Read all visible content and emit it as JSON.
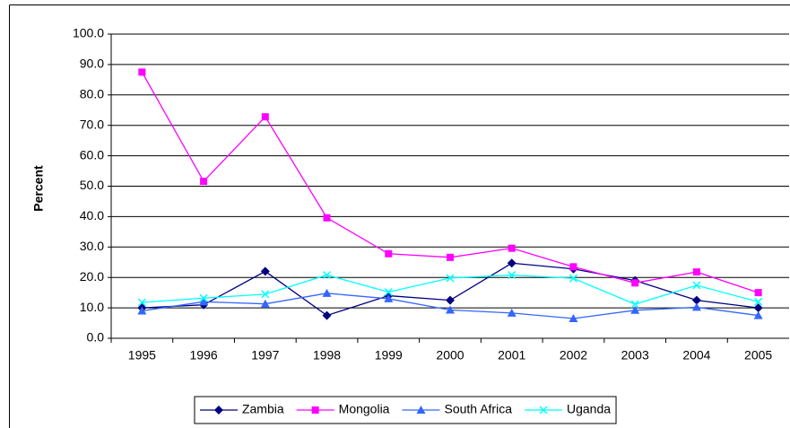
{
  "chart_data": {
    "type": "line",
    "y_label": "Percent",
    "categories": [
      "1995",
      "1996",
      "1997",
      "1998",
      "1999",
      "2000",
      "2001",
      "2002",
      "2003",
      "2004",
      "2005"
    ],
    "series": [
      {
        "name": "Zambia",
        "color": "#000080",
        "marker": "diamond",
        "values": [
          10.0,
          11.0,
          22.0,
          7.5,
          14.0,
          12.5,
          24.7,
          22.8,
          19.0,
          12.5,
          10.0
        ]
      },
      {
        "name": "Mongolia",
        "color": "#ff00ff",
        "marker": "square",
        "values": [
          87.5,
          51.6,
          72.8,
          39.6,
          27.8,
          26.6,
          29.6,
          23.5,
          18.2,
          21.8,
          15.0
        ]
      },
      {
        "name": "South Africa",
        "color": "#3366ff",
        "marker": "triangle",
        "values": [
          9.0,
          12.0,
          11.3,
          14.8,
          13.0,
          9.3,
          8.3,
          6.5,
          9.2,
          10.2,
          7.5
        ]
      },
      {
        "name": "Uganda",
        "color": "#00ffff",
        "marker": "x",
        "values": [
          11.8,
          13.2,
          14.5,
          20.8,
          15.2,
          19.8,
          20.8,
          19.7,
          11.2,
          17.4,
          12.0
        ]
      }
    ],
    "ylim": [
      0,
      100
    ],
    "yticks": [
      {
        "value": 0,
        "label": "0.0"
      },
      {
        "value": 10,
        "label": "10.0"
      },
      {
        "value": 20,
        "label": "20.0"
      },
      {
        "value": 30,
        "label": "30.0"
      },
      {
        "value": 40,
        "label": "40.0"
      },
      {
        "value": 50,
        "label": "50.0"
      },
      {
        "value": 60,
        "label": "60.0"
      },
      {
        "value": 70,
        "label": "70.0"
      },
      {
        "value": 80,
        "label": "80.0"
      },
      {
        "value": 90,
        "label": "90.0"
      },
      {
        "value": 100,
        "label": "100.0"
      }
    ],
    "grid": true,
    "legend": "bottom"
  }
}
